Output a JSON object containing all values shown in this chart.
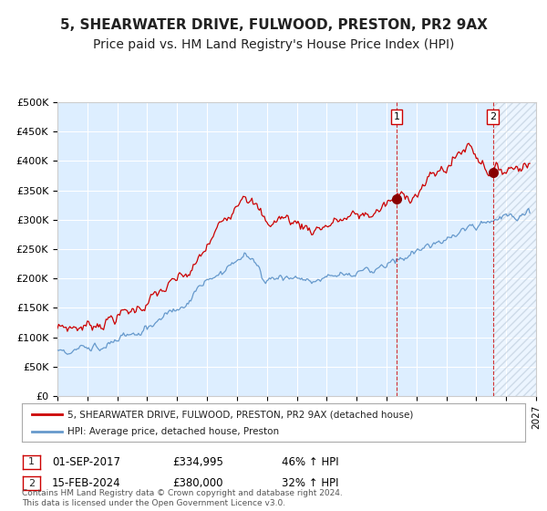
{
  "title": "5, SHEARWATER DRIVE, FULWOOD, PRESTON, PR2 9AX",
  "subtitle": "Price paid vs. HM Land Registry's House Price Index (HPI)",
  "legend_line1": "5, SHEARWATER DRIVE, FULWOOD, PRESTON, PR2 9AX (detached house)",
  "legend_line2": "HPI: Average price, detached house, Preston",
  "annotation1_date": "01-SEP-2017",
  "annotation1_price": "£334,995",
  "annotation1_hpi": "46% ↑ HPI",
  "annotation2_date": "15-FEB-2024",
  "annotation2_price": "£380,000",
  "annotation2_hpi": "32% ↑ HPI",
  "marker1_x": 2017.67,
  "marker1_y": 334995,
  "marker2_x": 2024.12,
  "marker2_y": 380000,
  "vline1_x": 2017.67,
  "vline2_x": 2024.12,
  "hatch_start": 2024.12,
  "ylim": [
    0,
    500000
  ],
  "xlim_start": 1995,
  "xlim_end": 2027,
  "red_line_color": "#cc0000",
  "blue_line_color": "#6699cc",
  "bg_color": "#ddeeff",
  "grid_color": "#ffffff",
  "footnote": "Contains HM Land Registry data © Crown copyright and database right 2024.\nThis data is licensed under the Open Government Licence v3.0.",
  "title_fontsize": 11,
  "subtitle_fontsize": 10
}
